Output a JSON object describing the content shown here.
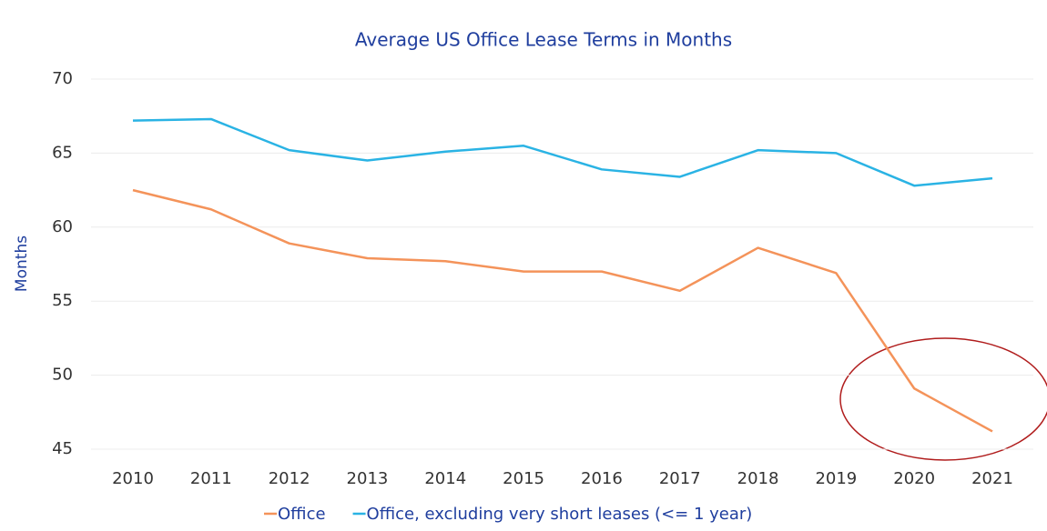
{
  "chart_data": {
    "type": "line",
    "title": "Average US Office Lease Terms in Months",
    "y_label": "Months",
    "categories": [
      "2010",
      "2011",
      "2012",
      "2013",
      "2014",
      "2015",
      "2016",
      "2017",
      "2018",
      "2019",
      "2020",
      "2021"
    ],
    "series": [
      {
        "name": "Office",
        "color": "#f4935a",
        "values": [
          62.5,
          61.2,
          58.9,
          57.9,
          57.7,
          57.0,
          57.0,
          55.7,
          58.6,
          56.9,
          49.1,
          46.2
        ]
      },
      {
        "name": "Office, excluding very short leases (<= 1 year)",
        "color": "#2ab3e4",
        "values": [
          67.2,
          67.3,
          65.2,
          64.5,
          65.1,
          65.5,
          63.9,
          63.4,
          65.2,
          65.0,
          62.8,
          63.3
        ]
      }
    ],
    "ylim": [
      45,
      70
    ],
    "yticks": [
      45,
      50,
      55,
      60,
      65,
      70
    ],
    "grid": true,
    "legend": "bottom"
  }
}
